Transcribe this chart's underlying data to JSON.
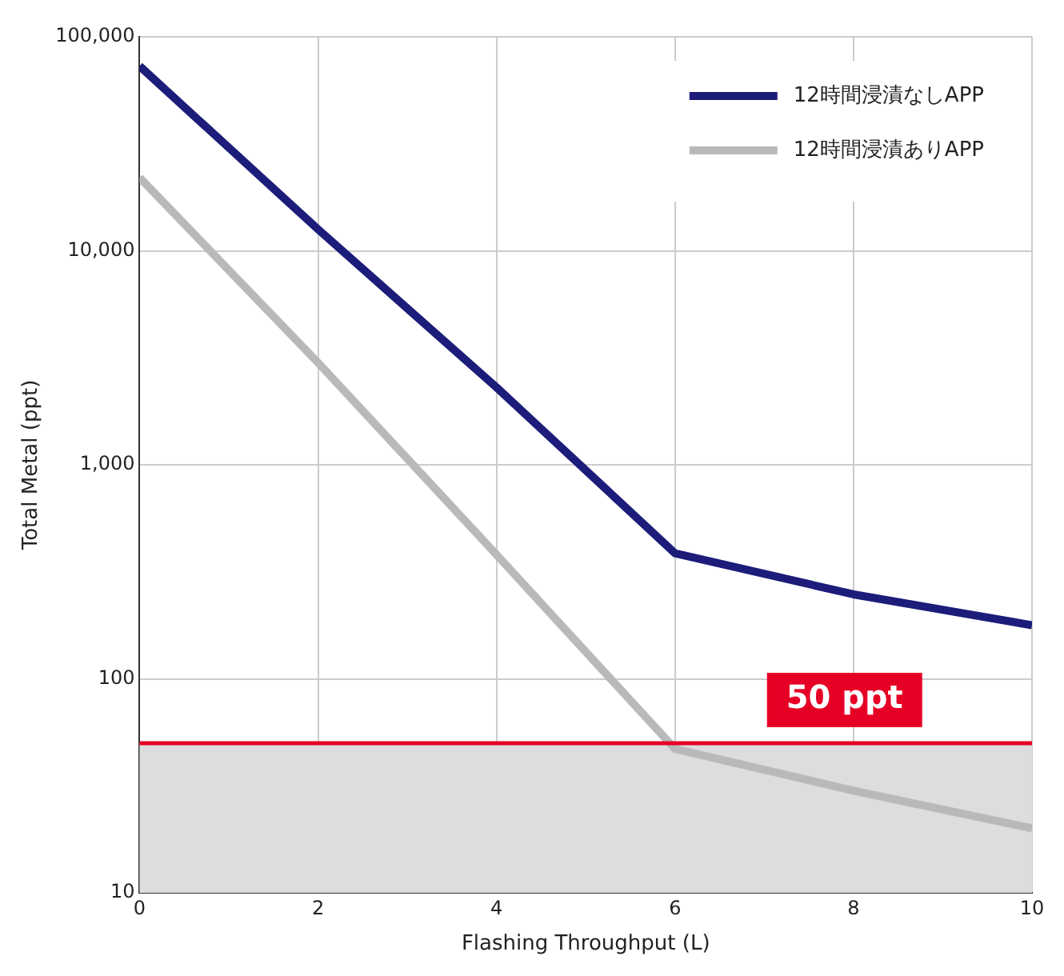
{
  "chart_data": {
    "type": "line",
    "xlabel": "Flashing Throughput (L)",
    "ylabel": "Total Metal (ppt)",
    "x": [
      0,
      2,
      4,
      6,
      8,
      10
    ],
    "series": [
      {
        "name": "12時間浸漬なしAPP",
        "color": "#1c1c7a",
        "values": [
          73000,
          12600,
          2300,
          386,
          248,
          178
        ]
      },
      {
        "name": "12時間浸漬ありAPP",
        "color": "#b9b9b9",
        "values": [
          22000,
          3000,
          380,
          47,
          30,
          20
        ]
      }
    ],
    "log": "y",
    "xlim": [
      0,
      10
    ],
    "xticks": [
      0,
      2,
      4,
      6,
      8,
      10
    ],
    "ylim": [
      10,
      100000
    ],
    "yticks": [
      {
        "value": 10,
        "label": "10"
      },
      {
        "value": 100,
        "label": "100"
      },
      {
        "value": 1000,
        "label": "1,000"
      },
      {
        "value": 10000,
        "label": "10,000"
      },
      {
        "value": 100000,
        "label": "100,000"
      }
    ],
    "ref_lines": [
      {
        "axis": "y",
        "value": 50,
        "label": "50 ppt",
        "color": "#e60026"
      }
    ],
    "bands": [
      {
        "axis": "y",
        "from": 10,
        "to": 50,
        "color": "#dddddd"
      }
    ],
    "grid": true,
    "legend": "top right",
    "marker": "none",
    "line_style": "solid"
  }
}
